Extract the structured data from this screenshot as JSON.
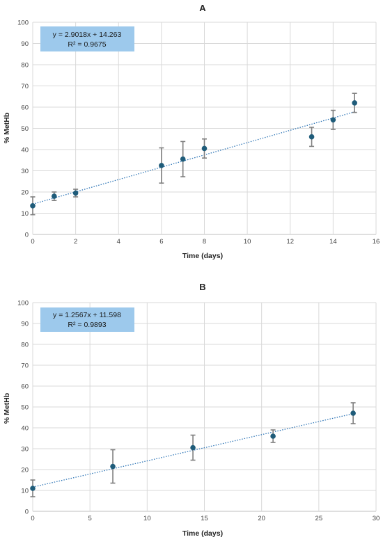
{
  "chart_data": [
    {
      "type": "scatter",
      "title": "A",
      "xlabel": "Time (days)",
      "ylabel": "% MetHb",
      "xlim": [
        0,
        16
      ],
      "ylim": [
        0,
        100
      ],
      "xticks": [
        0,
        2,
        4,
        6,
        8,
        10,
        12,
        14,
        16
      ],
      "yticks": [
        0,
        10,
        20,
        30,
        40,
        50,
        60,
        70,
        80,
        90,
        100
      ],
      "grid": true,
      "points": [
        {
          "x": 0,
          "y": 13.5,
          "err": 4.2
        },
        {
          "x": 1,
          "y": 18,
          "err": 2
        },
        {
          "x": 2,
          "y": 19.5,
          "err": 1.8
        },
        {
          "x": 6,
          "y": 32.5,
          "err": 8.3
        },
        {
          "x": 7,
          "y": 35.5,
          "err": 8.3
        },
        {
          "x": 8,
          "y": 40.5,
          "err": 4.5
        },
        {
          "x": 13,
          "y": 46,
          "err": 4.5
        },
        {
          "x": 14,
          "y": 54,
          "err": 4.5
        },
        {
          "x": 15,
          "y": 62,
          "err": 4.5
        }
      ],
      "trendline": {
        "slope": 2.9018,
        "intercept": 14.263,
        "x_range": [
          0,
          15
        ]
      },
      "equation": "y = 2.9018x + 14.263",
      "r2": "R² = 0.9675"
    },
    {
      "type": "scatter",
      "title": "B",
      "xlabel": "Time (days)",
      "ylabel": "% MetHb",
      "xlim": [
        0,
        30
      ],
      "ylim": [
        0,
        100
      ],
      "xticks": [
        0,
        5,
        10,
        15,
        20,
        25,
        30
      ],
      "yticks": [
        0,
        10,
        20,
        30,
        40,
        50,
        60,
        70,
        80,
        90,
        100
      ],
      "grid": true,
      "points": [
        {
          "x": 0,
          "y": 11,
          "err": 4
        },
        {
          "x": 7,
          "y": 21.5,
          "err": 8
        },
        {
          "x": 14,
          "y": 30.5,
          "err": 6
        },
        {
          "x": 21,
          "y": 36,
          "err": 3
        },
        {
          "x": 28,
          "y": 47,
          "err": 5
        }
      ],
      "trendline": {
        "slope": 1.2567,
        "intercept": 11.598,
        "x_range": [
          0,
          28
        ]
      },
      "equation": "y = 1.2567x + 11.598",
      "r2": "R² = 0.9893"
    }
  ],
  "colors": {
    "marker": "#1f5c7a",
    "trendline": "#2e75b6",
    "error_bar": "#7f7f7f",
    "equation_box": "#9dc9ec",
    "grid": "#d9d9d9"
  }
}
